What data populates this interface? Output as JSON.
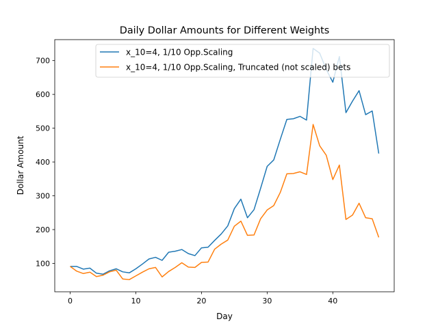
{
  "chart_data": {
    "type": "line",
    "title": "Daily Dollar Amounts for Different Weights",
    "xlabel": "Day",
    "ylabel": "Dollar Amount",
    "xlim": [
      -2.35,
      49.35
    ],
    "ylim": [
      16,
      762
    ],
    "xticks": [
      0,
      10,
      20,
      30,
      40
    ],
    "yticks": [
      100,
      200,
      300,
      400,
      500,
      600,
      700
    ],
    "grid": false,
    "legend_position": "top-right",
    "x": [
      0,
      1,
      2,
      3,
      4,
      5,
      6,
      7,
      8,
      9,
      10,
      11,
      12,
      13,
      14,
      15,
      16,
      17,
      18,
      19,
      20,
      21,
      22,
      23,
      24,
      25,
      26,
      27,
      28,
      29,
      30,
      31,
      32,
      33,
      34,
      35,
      36,
      37,
      38,
      39,
      40,
      41,
      42,
      43,
      44,
      45,
      46,
      47
    ],
    "series": [
      {
        "name": "x_10=4, 1/10 Opp.Scaling",
        "color": "#1f77b4",
        "values": [
          91,
          91,
          83,
          86,
          71,
          68,
          78,
          84,
          75,
          72,
          84,
          98,
          113,
          118,
          109,
          133,
          136,
          141,
          129,
          123,
          146,
          148,
          168,
          187,
          211,
          262,
          290,
          235,
          259,
          322,
          387,
          406,
          467,
          526,
          528,
          535,
          524,
          736,
          722,
          674,
          636,
          712,
          546,
          580,
          611,
          540,
          551,
          425
        ]
      },
      {
        "name": "x_10=4, 1/10 Opp.Scaling, Truncated (not scaled) bets",
        "color": "#ff7f0e",
        "values": [
          91,
          77,
          70,
          74,
          61,
          65,
          75,
          80,
          54,
          52,
          63,
          74,
          84,
          88,
          60,
          76,
          88,
          102,
          89,
          88,
          103,
          104,
          142,
          157,
          169,
          210,
          225,
          183,
          184,
          232,
          258,
          271,
          310,
          365,
          366,
          371,
          363,
          511,
          448,
          420,
          348,
          391,
          230,
          243,
          278,
          235,
          232,
          177
        ]
      }
    ]
  }
}
